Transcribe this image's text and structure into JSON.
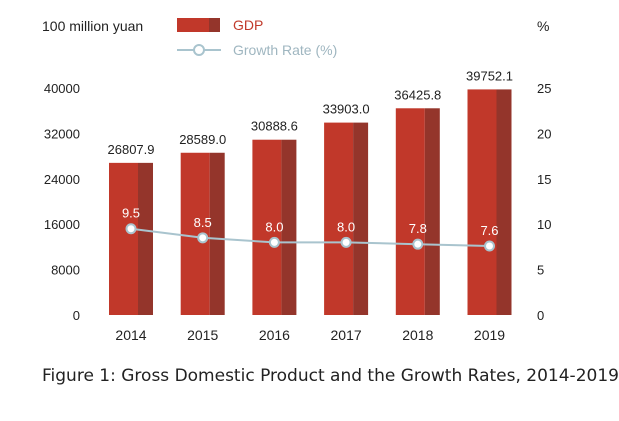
{
  "chart_data": {
    "type": "bar+line",
    "categories": [
      "2014",
      "2015",
      "2016",
      "2017",
      "2018",
      "2019"
    ],
    "series": [
      {
        "name": "GDP",
        "kind": "bar",
        "axis": "left",
        "values": [
          26807.9,
          28589.0,
          30888.6,
          33903.0,
          36425.8,
          39752.1
        ],
        "labels": [
          "26807.9",
          "28589.0",
          "30888.6",
          "33903.0",
          "36425.8",
          "39752.1"
        ]
      },
      {
        "name": "Growth Rate (%)",
        "kind": "line",
        "axis": "right",
        "values": [
          9.5,
          8.5,
          8.0,
          8.0,
          7.8,
          7.6
        ],
        "labels": [
          "9.5",
          "8.5",
          "8.0",
          "8.0",
          "7.8",
          "7.6"
        ]
      }
    ],
    "left_axis": {
      "label": "100 million yuan",
      "range": [
        0,
        40000
      ],
      "ticks": [
        0,
        8000,
        16000,
        24000,
        32000,
        40000
      ]
    },
    "right_axis": {
      "label": "%",
      "range": [
        0,
        25
      ],
      "ticks": [
        0,
        5,
        10,
        15,
        20,
        25
      ]
    },
    "legend_position": "top-center",
    "grid": false
  },
  "caption": "Figure 1: Gross Domestic Product and the Growth Rates, 2014-2019",
  "colors": {
    "bar_front": "#c1382a",
    "bar_side": "#94352b",
    "line": "#a9c4ce",
    "marker_fill": "#ffffff",
    "legend_text": "#c13a2b",
    "legend_line_text": "#9fb6c0",
    "text": "#222222"
  }
}
